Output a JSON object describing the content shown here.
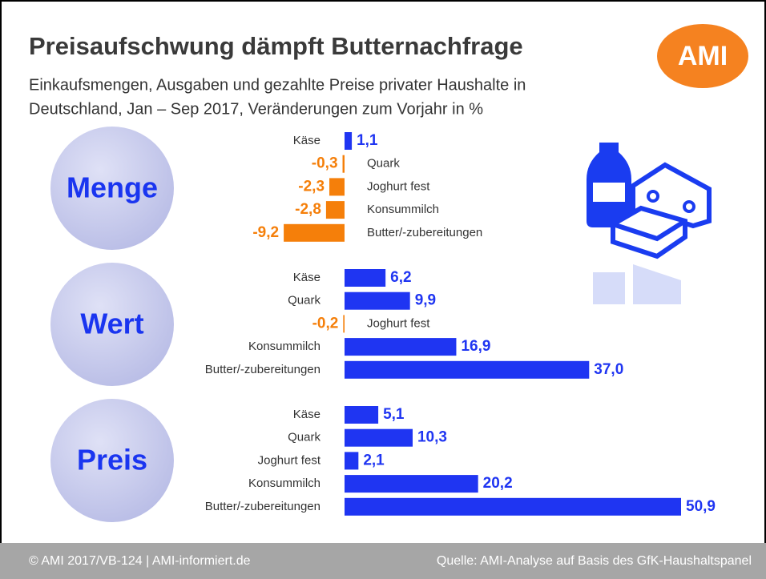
{
  "header": {
    "title": "Preisaufschwung dämpft Butternachfrage",
    "subtitle": [
      "Einkaufsmengen, Ausgaben und gezahlte Preise privater Haushalte in",
      "Deutschland, Jan – Sep 2017, Veränderungen zum Vorjahr in %"
    ],
    "logo": "AMI"
  },
  "footer": {
    "left": "© AMI 2017/VB-124 | AMI-informiert.de",
    "right": "Quelle: AMI-Analyse auf Basis des GfK-Haushaltspanel"
  },
  "chart_data": [
    {
      "type": "bar",
      "orientation": "horizontal",
      "title": "Menge",
      "categories": [
        "Käse",
        "Quark",
        "Joghurt fest",
        "Konsummilch",
        "Butter/-zubereitungen"
      ],
      "values": [
        1.1,
        -0.3,
        -2.3,
        -2.8,
        -9.2
      ],
      "value_labels": [
        "1,1",
        "-0,3",
        "-2,3",
        "-2,8",
        "-9,2"
      ],
      "colors": {
        "positive": "#1f35f2",
        "negative": "#f57f0a"
      }
    },
    {
      "type": "bar",
      "orientation": "horizontal",
      "title": "Wert",
      "categories": [
        "Käse",
        "Quark",
        "Joghurt fest",
        "Konsummilch",
        "Butter/-zubereitungen"
      ],
      "values": [
        6.2,
        9.9,
        -0.2,
        16.9,
        37.0
      ],
      "value_labels": [
        "6,2",
        "9,9",
        "-0,2",
        "16,9",
        "37,0"
      ],
      "colors": {
        "positive": "#1f35f2",
        "negative": "#f57f0a"
      }
    },
    {
      "type": "bar",
      "orientation": "horizontal",
      "title": "Preis",
      "categories": [
        "Käse",
        "Quark",
        "Joghurt fest",
        "Konsummilch",
        "Butter/-zubereitungen"
      ],
      "values": [
        5.1,
        10.3,
        2.1,
        20.2,
        50.9
      ],
      "value_labels": [
        "5,1",
        "10,3",
        "2,1",
        "20,2",
        "50,9"
      ],
      "colors": {
        "positive": "#1f35f2",
        "negative": "#f57f0a"
      }
    }
  ]
}
